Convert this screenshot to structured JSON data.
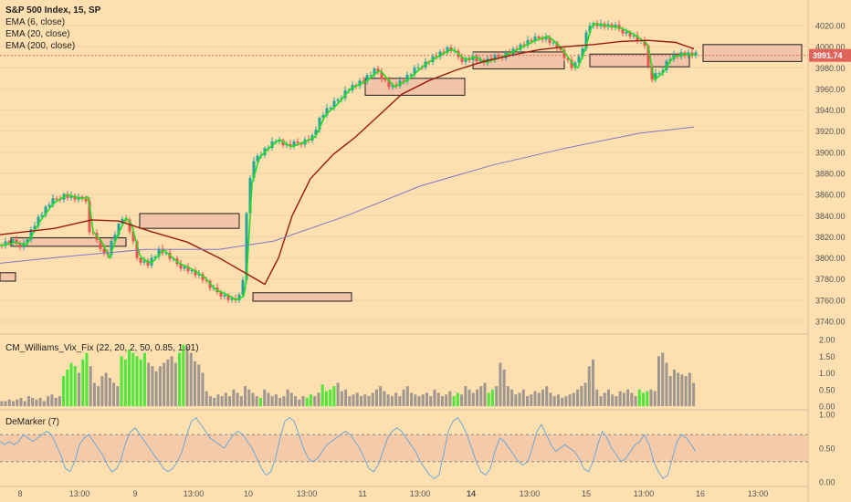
{
  "chart_data": [
    {
      "type": "candlestick",
      "title": "S&P 500 Index, 15, SP",
      "series": [
        {
          "name": "EMA (6, close)",
          "color": "#22dd22"
        },
        {
          "name": "EMA (20, close)",
          "color": "#9b1c0c"
        },
        {
          "name": "EMA (200, close)",
          "color": "#7f79c8"
        }
      ],
      "ylim": [
        3735,
        4035
      ],
      "y_ticks": [
        "4020.00",
        "4000.00",
        "3980.00",
        "3960.00",
        "3940.00",
        "3920.00",
        "3900.00",
        "3880.00",
        "3860.00",
        "3840.00",
        "3820.00",
        "3800.00",
        "3780.00",
        "3760.00",
        "3740.00"
      ],
      "x_ticks": [
        "8",
        "13:00",
        "9",
        "13:00",
        "10",
        "13:00",
        "11",
        "13:00",
        "14",
        "13:00",
        "15",
        "13:00",
        "16",
        "13:00"
      ],
      "last_price": "3991.74",
      "price_path": [
        [
          0,
          3812
        ],
        [
          12,
          3815
        ],
        [
          25,
          3812
        ],
        [
          40,
          3835
        ],
        [
          55,
          3852
        ],
        [
          70,
          3860
        ],
        [
          85,
          3856
        ],
        [
          93,
          3858
        ],
        [
          98,
          3825
        ],
        [
          108,
          3815
        ],
        [
          116,
          3800
        ],
        [
          124,
          3820
        ],
        [
          134,
          3838
        ],
        [
          140,
          3832
        ],
        [
          150,
          3800
        ],
        [
          162,
          3795
        ],
        [
          175,
          3808
        ],
        [
          192,
          3795
        ],
        [
          205,
          3790
        ],
        [
          220,
          3782
        ],
        [
          232,
          3770
        ],
        [
          245,
          3765
        ],
        [
          255,
          3760
        ],
        [
          265,
          3765
        ],
        [
          272,
          3870
        ],
        [
          280,
          3895
        ],
        [
          292,
          3905
        ],
        [
          302,
          3912
        ],
        [
          315,
          3905
        ],
        [
          330,
          3910
        ],
        [
          342,
          3915
        ],
        [
          352,
          3935
        ],
        [
          365,
          3945
        ],
        [
          380,
          3960
        ],
        [
          398,
          3968
        ],
        [
          412,
          3978
        ],
        [
          428,
          3962
        ],
        [
          442,
          3968
        ],
        [
          460,
          3982
        ],
        [
          478,
          3992
        ],
        [
          492,
          3998
        ],
        [
          505,
          3988
        ],
        [
          518,
          3990
        ],
        [
          528,
          3985
        ],
        [
          545,
          3990
        ],
        [
          560,
          3996
        ],
        [
          580,
          4005
        ],
        [
          596,
          4010
        ],
        [
          610,
          4000
        ],
        [
          628,
          3978
        ],
        [
          636,
          3995
        ],
        [
          645,
          4022
        ],
        [
          660,
          4020
        ],
        [
          675,
          4018
        ],
        [
          690,
          4012
        ],
        [
          706,
          4002
        ],
        [
          712,
          3968
        ],
        [
          722,
          3975
        ],
        [
          733,
          3990
        ],
        [
          745,
          3993
        ],
        [
          762,
          3992
        ]
      ],
      "ema20_path": [
        [
          0,
          3822
        ],
        [
          60,
          3828
        ],
        [
          100,
          3836
        ],
        [
          130,
          3835
        ],
        [
          165,
          3825
        ],
        [
          205,
          3815
        ],
        [
          240,
          3800
        ],
        [
          270,
          3785
        ],
        [
          290,
          3775
        ],
        [
          305,
          3800
        ],
        [
          320,
          3840
        ],
        [
          340,
          3875
        ],
        [
          365,
          3898
        ],
        [
          390,
          3915
        ],
        [
          415,
          3935
        ],
        [
          440,
          3955
        ],
        [
          470,
          3968
        ],
        [
          500,
          3978
        ],
        [
          530,
          3986
        ],
        [
          560,
          3992
        ],
        [
          590,
          3997
        ],
        [
          620,
          4000
        ],
        [
          650,
          4002
        ],
        [
          680,
          4005
        ],
        [
          710,
          4006
        ],
        [
          740,
          4004
        ],
        [
          760,
          3998
        ]
      ],
      "ema200_path": [
        [
          0,
          3795
        ],
        [
          80,
          3802
        ],
        [
          160,
          3808
        ],
        [
          240,
          3808
        ],
        [
          300,
          3816
        ],
        [
          380,
          3840
        ],
        [
          460,
          3868
        ],
        [
          540,
          3888
        ],
        [
          620,
          3904
        ],
        [
          700,
          3918
        ],
        [
          760,
          3924
        ]
      ],
      "zones": [
        {
          "x0": 0,
          "x1": 17,
          "y_top": 3786,
          "y_bottom": 3778
        },
        {
          "x0": 12,
          "x1": 138,
          "y_top": 3819,
          "y_bottom": 3811
        },
        {
          "x0": 153,
          "x1": 262,
          "y_top": 3842,
          "y_bottom": 3828
        },
        {
          "x0": 277,
          "x1": 385,
          "y_top": 3767,
          "y_bottom": 3759
        },
        {
          "x0": 400,
          "x1": 509,
          "y_top": 3970,
          "y_bottom": 3954
        },
        {
          "x0": 518,
          "x1": 618,
          "y_top": 3995,
          "y_bottom": 3979
        },
        {
          "x0": 646,
          "x1": 755,
          "y_top": 3993,
          "y_bottom": 3981
        },
        {
          "x0": 770,
          "x1": 878,
          "y_top": 4002,
          "y_bottom": 3986
        }
      ]
    },
    {
      "type": "bar",
      "title": "CM_Williams_Vix_Fix (22, 20, 2, 50, 0.85, 1.01)",
      "y_ticks": [
        "2.00",
        "1.50",
        "1.00",
        "0.50",
        "0.00"
      ],
      "ylim": [
        0,
        2
      ],
      "colors": {
        "normal": "#a09890",
        "alert": "#4ee83a"
      },
      "values": [
        0.15,
        0.15,
        0.2,
        0.15,
        0.2,
        0.25,
        0.15,
        0.3,
        0.25,
        0.2,
        0.25,
        0.15,
        0.3,
        0.35,
        0.25,
        0.3,
        0.9,
        1.1,
        1.3,
        1.2,
        1.0,
        1.4,
        1.6,
        1.2,
        0.7,
        0.6,
        0.9,
        1.0,
        0.85,
        0.7,
        0.6,
        1.5,
        1.4,
        1.7,
        1.6,
        1.5,
        1.4,
        1.6,
        1.3,
        1.2,
        1.05,
        1.2,
        1.3,
        1.4,
        1.5,
        1.3,
        1.6,
        1.85,
        1.8,
        1.6,
        1.35,
        1.25,
        1.0,
        0.45,
        0.3,
        0.25,
        0.35,
        0.3,
        0.4,
        0.3,
        0.5,
        0.4,
        0.3,
        0.6,
        0.5,
        0.4,
        0.3,
        0.25,
        0.5,
        0.4,
        0.3,
        0.35,
        0.25,
        0.3,
        0.5,
        0.4,
        0.3,
        0.2,
        0.3,
        0.25,
        0.35,
        0.3,
        0.4,
        0.65,
        0.45,
        0.5,
        0.6,
        0.7,
        0.45,
        0.5,
        0.3,
        0.35,
        0.4,
        0.3,
        0.35,
        0.3,
        0.4,
        0.5,
        0.6,
        0.45,
        0.35,
        0.3,
        0.4,
        0.3,
        0.5,
        0.6,
        0.4,
        0.35,
        0.3,
        0.35,
        0.4,
        0.3,
        0.5,
        0.4,
        0.3,
        0.35,
        0.45,
        0.3,
        0.4,
        0.35,
        0.6,
        0.5,
        0.4,
        0.5,
        0.6,
        0.7,
        0.4,
        0.5,
        0.6,
        1.3,
        1.1,
        0.6,
        0.5,
        0.35,
        0.4,
        0.5,
        0.3,
        0.35,
        0.45,
        0.4,
        0.5,
        0.6,
        0.4,
        0.3,
        0.35,
        0.25,
        0.3,
        0.35,
        0.4,
        0.5,
        0.6,
        0.7,
        1.2,
        1.4,
        0.5,
        0.3,
        0.4,
        0.5,
        0.35,
        0.3,
        0.45,
        0.4,
        0.5,
        0.4,
        0.3,
        0.5,
        0.4,
        0.45,
        0.5,
        0.45,
        1.5,
        1.6,
        1.3,
        0.9,
        1.1,
        1.0,
        0.95,
        0.9,
        1.0,
        0.7
      ],
      "alert_indexes": [
        16,
        17,
        18,
        19,
        21,
        22,
        31,
        32,
        33,
        34,
        35,
        36,
        37,
        46,
        47,
        67,
        79,
        80,
        83,
        84,
        85,
        86,
        117,
        118,
        126,
        127,
        165,
        166,
        167
      ]
    },
    {
      "type": "line",
      "title": "DeMarker (7)",
      "y_ticks": [
        "1.00",
        "0.50",
        "0.00"
      ],
      "ylim": [
        0,
        1
      ],
      "bands": [
        0.7,
        0.3
      ],
      "color": "#6da9d6",
      "band_color": "#f2c4a8",
      "values": [
        0.6,
        0.55,
        0.6,
        0.55,
        0.6,
        0.7,
        0.65,
        0.6,
        0.65,
        0.7,
        0.75,
        0.7,
        0.55,
        0.4,
        0.2,
        0.15,
        0.3,
        0.55,
        0.65,
        0.7,
        0.6,
        0.5,
        0.4,
        0.25,
        0.15,
        0.2,
        0.35,
        0.6,
        0.75,
        0.8,
        0.7,
        0.6,
        0.5,
        0.4,
        0.3,
        0.2,
        0.15,
        0.2,
        0.3,
        0.45,
        0.7,
        0.9,
        0.95,
        0.85,
        0.75,
        0.65,
        0.6,
        0.55,
        0.5,
        0.6,
        0.7,
        0.75,
        0.7,
        0.6,
        0.5,
        0.35,
        0.2,
        0.1,
        0.15,
        0.35,
        0.65,
        0.9,
        0.95,
        0.9,
        0.7,
        0.5,
        0.35,
        0.3,
        0.35,
        0.45,
        0.55,
        0.6,
        0.65,
        0.7,
        0.75,
        0.7,
        0.6,
        0.5,
        0.35,
        0.2,
        0.15,
        0.25,
        0.45,
        0.65,
        0.75,
        0.8,
        0.75,
        0.65,
        0.55,
        0.45,
        0.3,
        0.2,
        0.1,
        0.05,
        0.1,
        0.4,
        0.75,
        0.9,
        0.95,
        0.85,
        0.7,
        0.5,
        0.3,
        0.15,
        0.1,
        0.2,
        0.45,
        0.65,
        0.6,
        0.5,
        0.4,
        0.3,
        0.25,
        0.3,
        0.5,
        0.75,
        0.85,
        0.7,
        0.55,
        0.45,
        0.5,
        0.55,
        0.5,
        0.45,
        0.35,
        0.2,
        0.15,
        0.3,
        0.55,
        0.75,
        0.65,
        0.5,
        0.4,
        0.3,
        0.35,
        0.45,
        0.55,
        0.6,
        0.7,
        0.55,
        0.3,
        0.15,
        0.05,
        0.1,
        0.35,
        0.6,
        0.7,
        0.65,
        0.55,
        0.45
      ]
    }
  ]
}
